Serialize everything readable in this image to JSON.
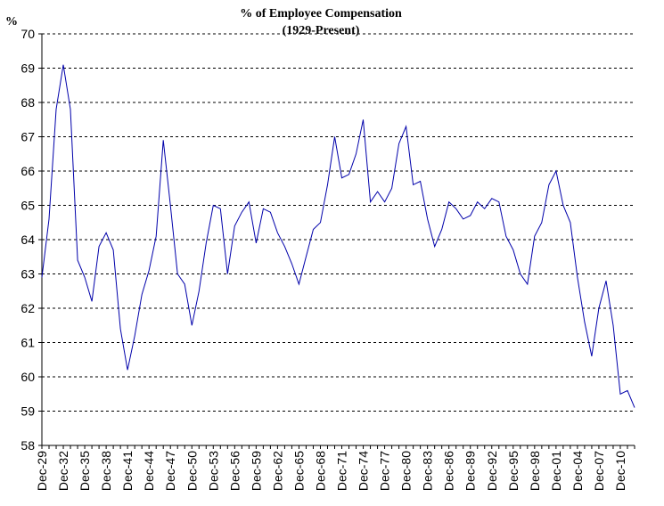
{
  "chart_data": {
    "type": "line",
    "title": "% of Employee Compensation",
    "subtitle": "(1929-Present)",
    "ylabel": "%",
    "xlabel": "",
    "ylim": [
      58,
      70
    ],
    "yticks": [
      58,
      59,
      60,
      61,
      62,
      63,
      64,
      65,
      66,
      67,
      68,
      69,
      70
    ],
    "grid": "horizontal dashed",
    "x_tick_labels": [
      "Dec-29",
      "Dec-32",
      "Dec-35",
      "Dec-38",
      "Dec-41",
      "Dec-44",
      "Dec-47",
      "Dec-50",
      "Dec-53",
      "Dec-56",
      "Dec-59",
      "Dec-62",
      "Dec-65",
      "Dec-68",
      "Dec-71",
      "Dec-74",
      "Dec-77",
      "Dec-80",
      "Dec-83",
      "Dec-86",
      "Dec-89",
      "Dec-92",
      "Dec-95",
      "Dec-98",
      "Dec-01",
      "Dec-04",
      "Dec-07",
      "Dec-10"
    ],
    "x_start_year": 1929,
    "x_end_year": 2012,
    "line_color": "#0000aa",
    "x": [
      1929,
      1930,
      1931,
      1932,
      1933,
      1934,
      1935,
      1936,
      1937,
      1938,
      1939,
      1940,
      1941,
      1942,
      1943,
      1944,
      1945,
      1946,
      1947,
      1948,
      1949,
      1950,
      1951,
      1952,
      1953,
      1954,
      1955,
      1956,
      1957,
      1958,
      1959,
      1960,
      1961,
      1962,
      1963,
      1964,
      1965,
      1966,
      1967,
      1968,
      1969,
      1970,
      1971,
      1972,
      1973,
      1974,
      1975,
      1976,
      1977,
      1978,
      1979,
      1980,
      1981,
      1982,
      1983,
      1984,
      1985,
      1986,
      1987,
      1988,
      1989,
      1990,
      1991,
      1992,
      1993,
      1994,
      1995,
      1996,
      1997,
      1998,
      1999,
      2000,
      2001,
      2002,
      2003,
      2004,
      2005,
      2006,
      2007,
      2008,
      2009,
      2010,
      2011,
      2012
    ],
    "values": [
      62.9,
      64.6,
      67.8,
      69.1,
      67.8,
      63.4,
      62.9,
      62.2,
      63.8,
      64.2,
      63.7,
      61.4,
      60.2,
      61.2,
      62.4,
      63.1,
      64.1,
      66.9,
      65.0,
      63.0,
      62.7,
      61.5,
      62.5,
      63.9,
      65.0,
      64.9,
      63.0,
      64.4,
      64.8,
      65.1,
      63.9,
      64.9,
      64.8,
      64.2,
      63.8,
      63.3,
      62.7,
      63.5,
      64.3,
      64.5,
      65.6,
      67.0,
      65.8,
      65.9,
      66.5,
      67.5,
      65.1,
      65.4,
      65.1,
      65.5,
      66.8,
      67.3,
      65.6,
      65.7,
      64.6,
      63.8,
      64.3,
      65.1,
      64.9,
      64.6,
      64.7,
      65.1,
      64.9,
      65.2,
      65.1,
      64.1,
      63.7,
      63.0,
      62.7,
      64.1,
      64.5,
      65.6,
      66.0,
      65.0,
      64.5,
      62.9,
      61.6,
      60.6,
      62.0,
      62.8,
      61.5,
      59.5,
      59.6,
      59.1
    ]
  }
}
